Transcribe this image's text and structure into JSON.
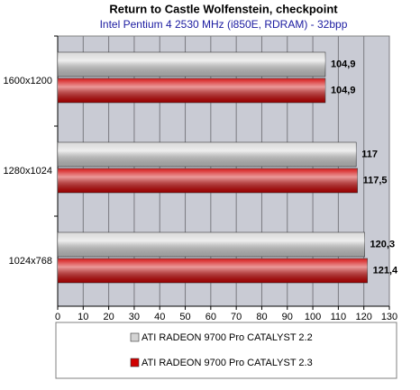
{
  "chart_data": {
    "type": "hbar",
    "title": "Return to Castle Wolfenstein, checkpoint",
    "subtitle": "Intel Pentium 4 2530 MHz (i850E, RDRAM) - 32bpp",
    "categories": [
      "1600x1200",
      "1280x1024",
      "1024x768"
    ],
    "series": [
      {
        "name": "ATI RADEON 9700 Pro CATALYST 2.2",
        "color": "#d4d4d4",
        "values": [
          104.9,
          117,
          120.3
        ],
        "value_labels": [
          "104,9",
          "117",
          "120,3"
        ]
      },
      {
        "name": "ATI RADEON 9700 Pro CATALYST 2.3",
        "color": "#d00000",
        "values": [
          104.9,
          117.5,
          121.4
        ],
        "value_labels": [
          "104,9",
          "117,5",
          "121,4"
        ]
      }
    ],
    "xlim": [
      0,
      130
    ],
    "xticks": [
      0,
      10,
      20,
      30,
      40,
      50,
      60,
      70,
      80,
      90,
      100,
      110,
      120,
      130
    ],
    "grid": true
  }
}
